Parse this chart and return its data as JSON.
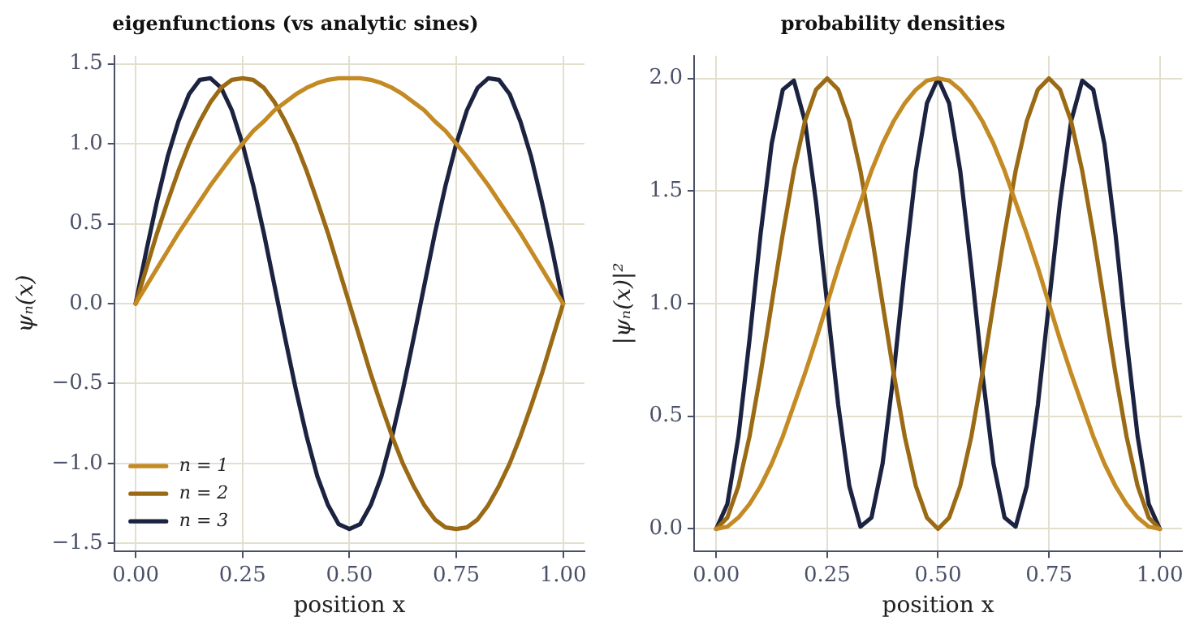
{
  "chart_data": [
    {
      "type": "line",
      "title": "eigenfunctions (vs analytic sines)",
      "xlabel": "position x",
      "ylabel": "ψₙ(x)",
      "xlim": [
        -0.05,
        1.05
      ],
      "ylim": [
        -1.55,
        1.55
      ],
      "xticks": [
        {
          "value": 0,
          "label": "0.00"
        },
        {
          "value": 0.25,
          "label": "0.25"
        },
        {
          "value": 0.5,
          "label": "0.50"
        },
        {
          "value": 0.75,
          "label": "0.75"
        },
        {
          "value": 1,
          "label": "1.00"
        }
      ],
      "yticks": [
        {
          "value": -1.5,
          "label": "−1.5"
        },
        {
          "value": -1,
          "label": "−1.0"
        },
        {
          "value": -0.5,
          "label": "−0.5"
        },
        {
          "value": 0,
          "label": "0.0"
        },
        {
          "value": 0.5,
          "label": "0.5"
        },
        {
          "value": 1,
          "label": "1.0"
        },
        {
          "value": 1.5,
          "label": "1.5"
        }
      ],
      "grid": true,
      "legend": "bottom left",
      "marker": "none",
      "line_style": "solid",
      "x": [
        0,
        0.025,
        0.05,
        0.075,
        0.1,
        0.125,
        0.15,
        0.175,
        0.2,
        0.225,
        0.25,
        0.275,
        0.3,
        0.325,
        0.35,
        0.375,
        0.4,
        0.425,
        0.45,
        0.475,
        0.5,
        0.525,
        0.55,
        0.575,
        0.6,
        0.625,
        0.65,
        0.675,
        0.7,
        0.725,
        0.75,
        0.775,
        0.8,
        0.825,
        0.85,
        0.875,
        0.9,
        0.925,
        0.95,
        0.975,
        1
      ],
      "series": [
        {
          "name": "n = 1",
          "color": "#c48a23",
          "values": [
            0,
            0.11,
            0.22,
            0.33,
            0.44,
            0.54,
            0.64,
            0.74,
            0.83,
            0.92,
            1.0,
            1.08,
            1.14,
            1.21,
            1.26,
            1.31,
            1.35,
            1.38,
            1.4,
            1.41,
            1.41,
            1.41,
            1.4,
            1.38,
            1.35,
            1.31,
            1.26,
            1.21,
            1.14,
            1.08,
            1.0,
            0.92,
            0.83,
            0.74,
            0.64,
            0.54,
            0.44,
            0.33,
            0.22,
            0.11,
            0
          ]
        },
        {
          "name": "n = 2",
          "color": "#9a6a14",
          "values": [
            0,
            0.22,
            0.44,
            0.64,
            0.83,
            1.0,
            1.14,
            1.26,
            1.35,
            1.4,
            1.41,
            1.4,
            1.35,
            1.26,
            1.14,
            1.0,
            0.83,
            0.64,
            0.44,
            0.22,
            0,
            -0.22,
            -0.44,
            -0.64,
            -0.83,
            -1.0,
            -1.14,
            -1.26,
            -1.35,
            -1.4,
            -1.41,
            -1.4,
            -1.35,
            -1.26,
            -1.14,
            -1.0,
            -0.83,
            -0.64,
            -0.44,
            -0.22,
            0
          ]
        },
        {
          "name": "n = 3",
          "color": "#1c2340",
          "values": [
            0,
            0.33,
            0.64,
            0.92,
            1.14,
            1.31,
            1.4,
            1.41,
            1.35,
            1.21,
            1.0,
            0.74,
            0.44,
            0.11,
            -0.22,
            -0.54,
            -0.83,
            -1.08,
            -1.26,
            -1.38,
            -1.41,
            -1.38,
            -1.26,
            -1.08,
            -0.83,
            -0.54,
            -0.22,
            0.11,
            0.44,
            0.74,
            1.0,
            1.21,
            1.35,
            1.41,
            1.4,
            1.31,
            1.14,
            0.92,
            0.64,
            0.33,
            0
          ]
        }
      ]
    },
    {
      "type": "line",
      "title": "probability densities",
      "xlabel": "position x",
      "ylabel": "|ψₙ(x)|²",
      "xlim": [
        -0.05,
        1.05
      ],
      "ylim": [
        -0.1,
        2.1
      ],
      "xticks": [
        {
          "value": 0,
          "label": "0.00"
        },
        {
          "value": 0.25,
          "label": "0.25"
        },
        {
          "value": 0.5,
          "label": "0.50"
        },
        {
          "value": 0.75,
          "label": "0.75"
        },
        {
          "value": 1,
          "label": "1.00"
        }
      ],
      "yticks": [
        {
          "value": 0,
          "label": "0.0"
        },
        {
          "value": 0.5,
          "label": "0.5"
        },
        {
          "value": 1,
          "label": "1.0"
        },
        {
          "value": 1.5,
          "label": "1.5"
        },
        {
          "value": 2,
          "label": "2.0"
        }
      ],
      "grid": true,
      "marker": "none",
      "line_style": "solid",
      "x": [
        0,
        0.025,
        0.05,
        0.075,
        0.1,
        0.125,
        0.15,
        0.175,
        0.2,
        0.225,
        0.25,
        0.275,
        0.3,
        0.325,
        0.35,
        0.375,
        0.4,
        0.425,
        0.45,
        0.475,
        0.5,
        0.525,
        0.55,
        0.575,
        0.6,
        0.625,
        0.65,
        0.675,
        0.7,
        0.725,
        0.75,
        0.775,
        0.8,
        0.825,
        0.85,
        0.875,
        0.9,
        0.925,
        0.95,
        0.975,
        1
      ],
      "series": [
        {
          "color": "#c48a23",
          "values": [
            0,
            0.01,
            0.05,
            0.11,
            0.19,
            0.29,
            0.41,
            0.55,
            0.69,
            0.84,
            1.0,
            1.16,
            1.31,
            1.45,
            1.59,
            1.71,
            1.81,
            1.89,
            1.95,
            1.99,
            2.0,
            1.99,
            1.95,
            1.89,
            1.81,
            1.71,
            1.59,
            1.45,
            1.31,
            1.16,
            1.0,
            0.84,
            0.69,
            0.55,
            0.41,
            0.29,
            0.19,
            0.11,
            0.05,
            0.01,
            0
          ]
        },
        {
          "color": "#9a6a14",
          "values": [
            0,
            0.05,
            0.19,
            0.41,
            0.69,
            1.0,
            1.31,
            1.59,
            1.81,
            1.95,
            2.0,
            1.95,
            1.81,
            1.59,
            1.31,
            1.0,
            0.69,
            0.41,
            0.19,
            0.05,
            0,
            0.05,
            0.19,
            0.41,
            0.69,
            1.0,
            1.31,
            1.59,
            1.81,
            1.95,
            2.0,
            1.95,
            1.81,
            1.59,
            1.31,
            1.0,
            0.69,
            0.41,
            0.19,
            0.05,
            0
          ]
        },
        {
          "color": "#1c2340",
          "values": [
            0,
            0.11,
            0.41,
            0.84,
            1.31,
            1.71,
            1.95,
            1.99,
            1.81,
            1.45,
            1.0,
            0.55,
            0.19,
            0.01,
            0.05,
            0.29,
            0.69,
            1.16,
            1.59,
            1.89,
            2.0,
            1.89,
            1.59,
            1.16,
            0.69,
            0.29,
            0.05,
            0.01,
            0.19,
            0.55,
            1.0,
            1.45,
            1.81,
            1.99,
            1.95,
            1.71,
            1.31,
            0.84,
            0.41,
            0.11,
            0
          ]
        }
      ]
    }
  ]
}
